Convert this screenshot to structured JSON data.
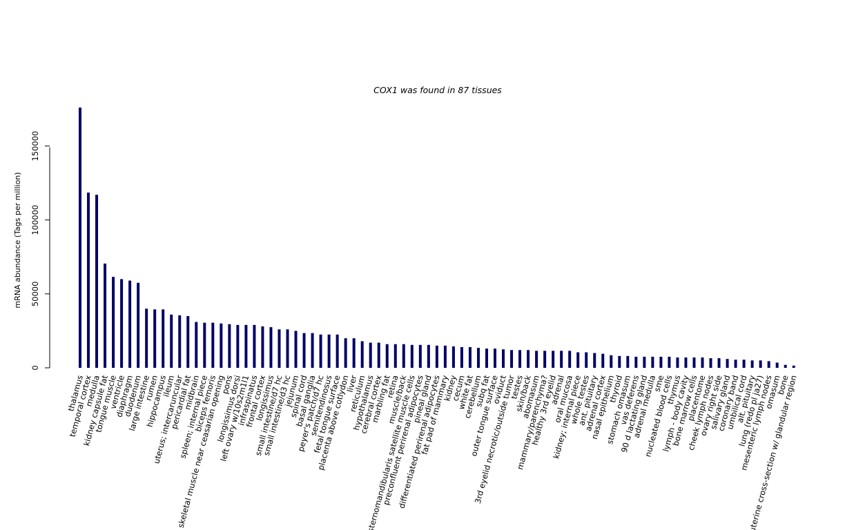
{
  "chart_data": {
    "type": "bar",
    "title": "COX1  was found in  87  tissues",
    "xlabel": "",
    "ylabel": "mRNA abundance (Tags per million)",
    "ylim": [
      0,
      175000
    ],
    "yticks": [
      0,
      50000,
      100000,
      150000
    ],
    "bar_color": "#000066",
    "grid": false,
    "legend": "none",
    "categories": [
      "thalamus",
      "temporal cortex",
      "medulla",
      "kidney capsule fat",
      "tongue muscle",
      "ventricle",
      "diaphragm",
      "duodenum",
      "large intestine",
      "rumen",
      "hippocampus",
      "ileum",
      "uterus; intercaruncular",
      "pericardial fat",
      "midbrain",
      "spleen; internal piece",
      "biceps femoris",
      "skeletal muscle near ceasarian opening",
      "pons",
      "longissimus dorsi",
      "left ovary w/10s2m1l1",
      "infraspinatus",
      "frontal cortex",
      "longissimus",
      "small intestine/d7 hc",
      "small intestine/d3 hc",
      "jejunum",
      "spinal cord",
      "basal ganglia",
      "peyer's patch/d7 hc",
      "semitendinosus",
      "fetal tongue surface",
      "placenta above cotlydon",
      "liver",
      "reticulum",
      "hypothalamus",
      "cerebral cortex",
      "marbling fat",
      "retina",
      "muscle/back",
      "sternomandibularis satellite muscle cells",
      "preconfluent perirenal adipocytes",
      "pineal gland",
      "differentiated perirenal adipocytes",
      "fat pad of mammary",
      "kidney",
      "cecum",
      "white fat",
      "cerebellum",
      "subq fat",
      "outer tongue surface",
      "oviduct",
      "3rd eyelid necrotic/outside tumor",
      "testes",
      "skin/back",
      "abomasum",
      "mammary/parenchyma?",
      "healthy 3rd eyelid",
      "adrenal",
      "oral mucosa",
      "kidney; internal piece",
      "whole testes",
      "ant. pituitary",
      "adrenal cortex",
      "nasal epithelium",
      "thyroid",
      "stomach omasum",
      "vas deferens",
      "90 d lactating gland",
      "adrenal medulla",
      "sme",
      "nucleated blood cells",
      "thymus",
      "lymph - body cavity",
      "bone marrow cells",
      "placentome",
      "cheek lymph nodes",
      "ovary right side",
      "salivary gland",
      "coronary band",
      "umbilical cord",
      "alt. pituitary",
      "lung (redo pl ja27)",
      "mesenteric lymph nodes",
      "omasum",
      "bone",
      "uterine cross-section w/ glandular region"
    ],
    "values": [
      176000,
      118500,
      117000,
      70500,
      61500,
      60000,
      59000,
      57500,
      40000,
      39500,
      39500,
      36000,
      35500,
      35000,
      31000,
      30500,
      30500,
      30000,
      29500,
      29000,
      29000,
      29000,
      28000,
      27500,
      26000,
      26000,
      25000,
      23500,
      23500,
      22500,
      22500,
      22500,
      20000,
      20000,
      18000,
      17000,
      17000,
      16000,
      16000,
      16000,
      15500,
      15500,
      15500,
      15000,
      15000,
      14500,
      14000,
      14000,
      13500,
      13000,
      13000,
      12500,
      12000,
      12000,
      12000,
      11500,
      11500,
      11500,
      11500,
      11500,
      10500,
      10500,
      10000,
      9500,
      8500,
      8000,
      8000,
      7500,
      7500,
      7500,
      7500,
      7500,
      7000,
      7000,
      7000,
      7000,
      6500,
      6500,
      6000,
      5500,
      5500,
      5000,
      5000,
      4500,
      3500,
      2000,
      1500
    ]
  }
}
